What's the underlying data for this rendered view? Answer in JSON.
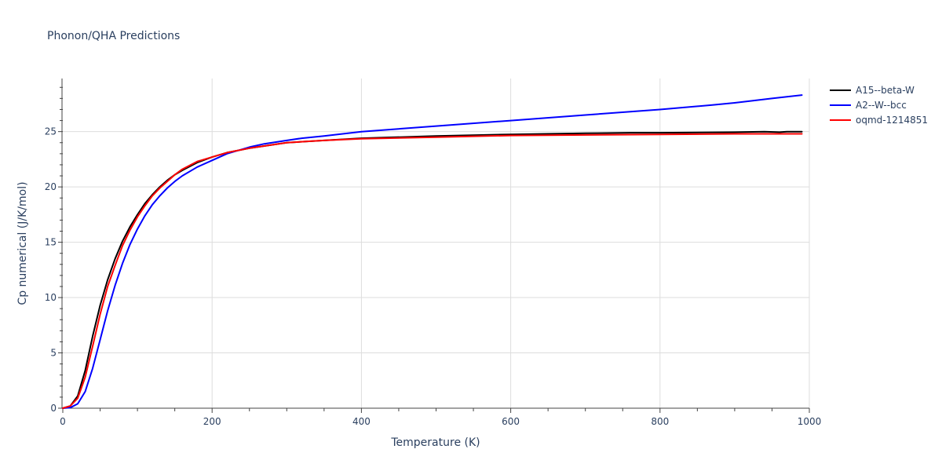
{
  "chart_data": {
    "type": "line",
    "title": "Phonon/QHA Predictions",
    "xlabel": "Temperature (K)",
    "ylabel": "Cp numerical (J/K/mol)",
    "xlim": [
      0,
      1000
    ],
    "ylim": [
      0,
      29.8
    ],
    "x_ticks": [
      0,
      200,
      400,
      600,
      800,
      1000
    ],
    "y_ticks": [
      0,
      5,
      10,
      15,
      20,
      25
    ],
    "grid": true,
    "legend_position": "top-right",
    "series": [
      {
        "name": "A15--beta-W",
        "color": "#000000",
        "x": [
          0,
          10,
          20,
          30,
          40,
          50,
          60,
          70,
          80,
          90,
          100,
          110,
          120,
          130,
          140,
          150,
          160,
          180,
          200,
          220,
          250,
          300,
          350,
          400,
          500,
          600,
          700,
          760,
          800,
          900,
          940,
          960,
          970,
          990
        ],
        "y": [
          0,
          0.2,
          1.1,
          3.4,
          6.5,
          9.3,
          11.6,
          13.5,
          15.1,
          16.4,
          17.5,
          18.5,
          19.3,
          20.0,
          20.6,
          21.1,
          21.5,
          22.2,
          22.7,
          23.1,
          23.5,
          24.0,
          24.2,
          24.4,
          24.6,
          24.75,
          24.85,
          24.9,
          24.9,
          24.95,
          25.0,
          24.95,
          25.0,
          25.0
        ]
      },
      {
        "name": "A2--W--bcc",
        "color": "#0000ff",
        "x": [
          0,
          10,
          20,
          30,
          40,
          50,
          60,
          70,
          80,
          90,
          100,
          110,
          120,
          130,
          140,
          150,
          160,
          180,
          200,
          220,
          250,
          270,
          300,
          320,
          350,
          400,
          500,
          600,
          700,
          800,
          870,
          900,
          950,
          990
        ],
        "y": [
          0,
          0.05,
          0.4,
          1.5,
          3.6,
          6.2,
          8.8,
          11.1,
          13.1,
          14.8,
          16.2,
          17.4,
          18.4,
          19.2,
          19.9,
          20.5,
          21.0,
          21.8,
          22.4,
          23.0,
          23.6,
          23.9,
          24.2,
          24.4,
          24.6,
          25.0,
          25.5,
          26.0,
          26.5,
          27.0,
          27.4,
          27.6,
          28.0,
          28.3
        ]
      },
      {
        "name": "oqmd-1214851",
        "color": "#ff0000",
        "x": [
          0,
          10,
          20,
          30,
          40,
          50,
          60,
          70,
          80,
          90,
          100,
          110,
          120,
          130,
          140,
          150,
          160,
          180,
          200,
          220,
          250,
          300,
          350,
          400,
          500,
          600,
          700,
          800,
          900,
          990
        ],
        "y": [
          0,
          0.2,
          0.9,
          2.8,
          5.6,
          8.5,
          11.0,
          12.9,
          14.7,
          16.1,
          17.3,
          18.3,
          19.2,
          19.9,
          20.5,
          21.1,
          21.6,
          22.3,
          22.7,
          23.1,
          23.5,
          24.0,
          24.2,
          24.35,
          24.5,
          24.65,
          24.7,
          24.75,
          24.8,
          24.8
        ]
      }
    ]
  }
}
